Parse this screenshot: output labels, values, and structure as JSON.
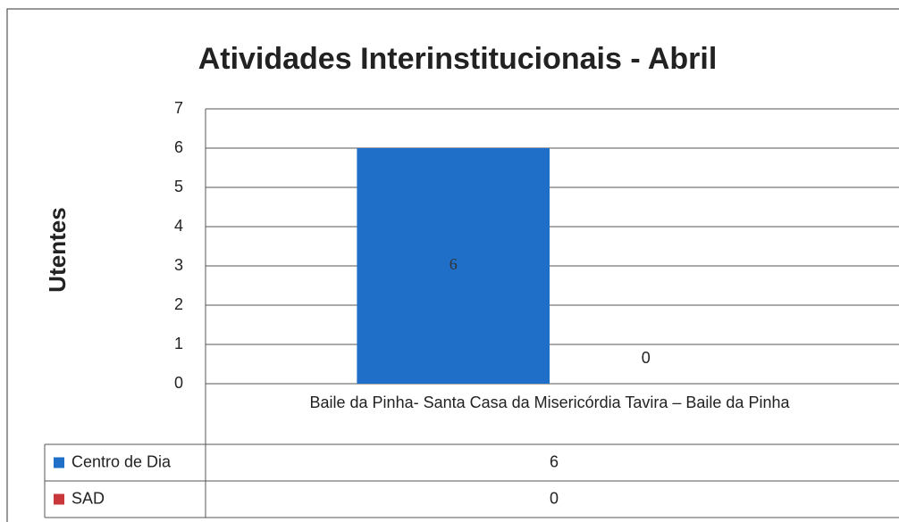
{
  "chart_data": {
    "type": "bar",
    "title": "Atividades Interinstitucionais  - Abril",
    "y_label": "Utentes",
    "categories": [
      "Baile da Pinha- Santa Casa da Misericórdia Tavira – Baile da Pinha"
    ],
    "series": [
      {
        "name": "Centro de Dia",
        "color": "#1f6fc8",
        "values": [
          6
        ]
      },
      {
        "name": "SAD",
        "color": "#c8383a",
        "values": [
          0
        ]
      }
    ],
    "ylim": [
      0,
      7
    ],
    "yticks": [
      0,
      1,
      2,
      3,
      4,
      5,
      6,
      7
    ],
    "grid": true,
    "data_table": true
  }
}
